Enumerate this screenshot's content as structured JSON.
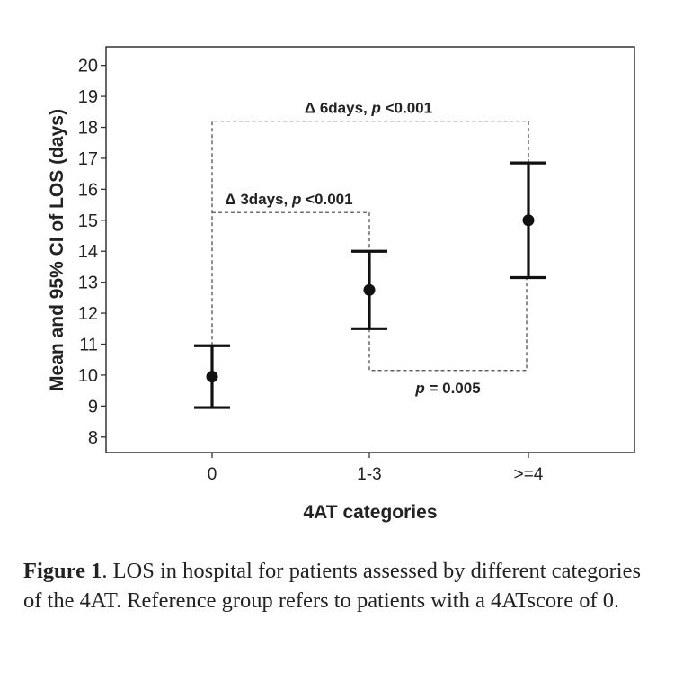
{
  "chart_data": {
    "type": "errorbar",
    "xlabel": "4AT categories",
    "ylabel": "Mean and 95% CI of LOS (days)",
    "categories": [
      "0",
      "1-3",
      ">=4"
    ],
    "means": [
      9.95,
      12.75,
      15.0
    ],
    "ci_lower": [
      8.95,
      11.5,
      13.15
    ],
    "ci_upper": [
      10.95,
      14.0,
      16.85
    ],
    "ylim": [
      7.5,
      20.6
    ],
    "yticks": [
      "8",
      "9",
      "10",
      "11",
      "12",
      "13",
      "14",
      "15",
      "16",
      "17",
      "18",
      "19",
      "20"
    ],
    "annotations": [
      {
        "delta": "Δ 6days, ",
        "p": "p",
        "rest": " <0.001",
        "from": 0,
        "to": 2,
        "level": 18.2
      },
      {
        "delta": "Δ 3days, ",
        "p": "p",
        "rest": " <0.001",
        "from": 0,
        "to": 1,
        "level": 15.25
      },
      {
        "delta": "",
        "p": "p",
        "rest": " = 0.005",
        "from": 1,
        "to": 2,
        "level": 10.15
      }
    ]
  },
  "caption": {
    "label": "Figure 1",
    "text": ".  LOS in hospital for patients assessed by different categories of the 4AT. Reference group refers to patients with a 4ATscore of 0."
  }
}
